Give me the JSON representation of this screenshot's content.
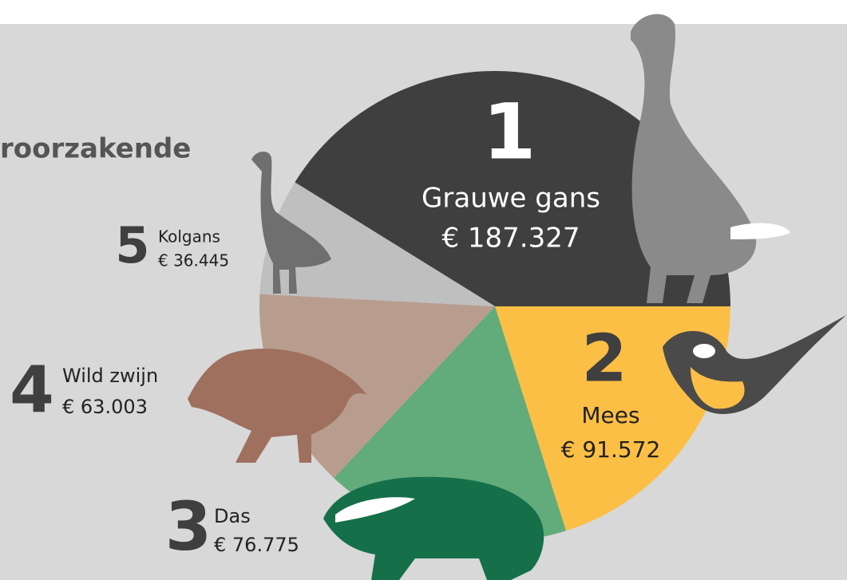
{
  "chart_data": {
    "type": "pie",
    "title": "roorzakende",
    "ranks": [
      1,
      2,
      3,
      4,
      5
    ],
    "categories": [
      "Grauwe gans",
      "Mees",
      "Das",
      "Wild zwijn",
      "Kolgans"
    ],
    "values": [
      187327,
      91572,
      76775,
      63003,
      36445
    ],
    "value_labels": [
      "€ 187.327",
      "€ 91.572",
      "€ 76.775",
      "€ 63.003",
      "€ 36.445"
    ],
    "colors": [
      "#3f3f3f",
      "#fcbf45",
      "#62ab7b",
      "#b89d8f",
      "#bfbfc0"
    ]
  }
}
